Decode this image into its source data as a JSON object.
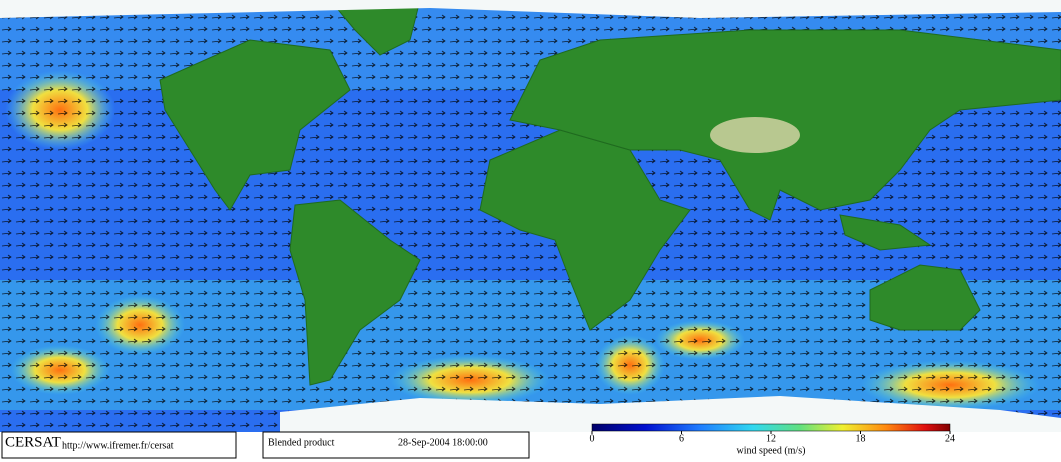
{
  "footer": {
    "source": "CERSAT",
    "url": "http://www.ifremer.fr/cersat",
    "product": "Blended product",
    "datetime": "28-Sep-2004 18:00:00"
  },
  "colorbar": {
    "label": "wind speed (m/s)",
    "lim": [
      0,
      24
    ],
    "ticks": [
      0,
      6,
      12,
      18,
      24
    ]
  }
}
